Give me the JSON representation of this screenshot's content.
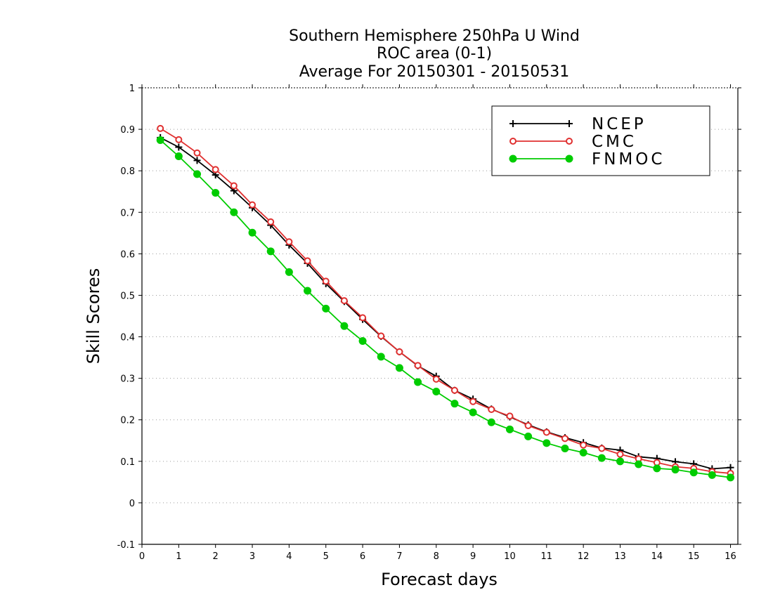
{
  "chart_data": {
    "type": "line",
    "title_lines": [
      "Southern Hemisphere 250hPa U Wind",
      "ROC area (0-1)",
      "Average For 20150301 - 20150531"
    ],
    "xlabel": "Forecast days",
    "ylabel": "Skill Scores",
    "xlim": [
      0,
      16.2
    ],
    "ylim": [
      -0.1,
      1
    ],
    "xticks": [
      0,
      1,
      2,
      3,
      4,
      5,
      6,
      7,
      8,
      9,
      10,
      11,
      12,
      13,
      14,
      15,
      16
    ],
    "yticks": [
      -0.1,
      0,
      0.1,
      0.2,
      0.3,
      0.4,
      0.5,
      0.6,
      0.7,
      0.8,
      0.9,
      1
    ],
    "ytick_labels": [
      "-0.1",
      "0",
      "0.1",
      "0.2",
      "0.3",
      "0.4",
      "0.5",
      "0.6",
      "0.7",
      "0.8",
      "0.9",
      "1"
    ],
    "grid": "horizontal dotted",
    "legend_position": "top-right",
    "x": [
      0.5,
      1,
      1.5,
      2,
      2.5,
      3,
      3.5,
      4,
      4.5,
      5,
      5.5,
      6,
      6.5,
      7,
      7.5,
      8,
      8.5,
      9,
      9.5,
      10,
      10.5,
      11,
      11.5,
      12,
      12.5,
      13,
      13.5,
      14,
      14.5,
      15,
      15.5,
      16
    ],
    "series": [
      {
        "name": "NCEP",
        "color": "#000000",
        "marker": "plus",
        "values": [
          0.88,
          0.857,
          0.825,
          0.79,
          0.752,
          0.711,
          0.669,
          0.621,
          0.577,
          0.528,
          0.485,
          0.442,
          0.401,
          0.364,
          0.33,
          0.305,
          0.271,
          0.25,
          0.226,
          0.207,
          0.188,
          0.171,
          0.157,
          0.145,
          0.132,
          0.127,
          0.111,
          0.107,
          0.099,
          0.094,
          0.082,
          0.085
        ]
      },
      {
        "name": "CMC",
        "color": "#e03030",
        "marker": "circle-open",
        "values": [
          0.902,
          0.875,
          0.843,
          0.803,
          0.764,
          0.718,
          0.677,
          0.629,
          0.583,
          0.534,
          0.487,
          0.446,
          0.402,
          0.364,
          0.331,
          0.298,
          0.271,
          0.244,
          0.225,
          0.209,
          0.186,
          0.17,
          0.155,
          0.139,
          0.131,
          0.117,
          0.106,
          0.097,
          0.087,
          0.083,
          0.075,
          0.071
        ]
      },
      {
        "name": "FNMOC",
        "color": "#00cc00",
        "marker": "circle-filled",
        "values": [
          0.874,
          0.835,
          0.792,
          0.747,
          0.7,
          0.651,
          0.606,
          0.556,
          0.511,
          0.468,
          0.426,
          0.39,
          0.352,
          0.325,
          0.291,
          0.268,
          0.239,
          0.218,
          0.194,
          0.177,
          0.16,
          0.144,
          0.131,
          0.121,
          0.108,
          0.1,
          0.093,
          0.083,
          0.08,
          0.073,
          0.067,
          0.061
        ]
      }
    ]
  }
}
